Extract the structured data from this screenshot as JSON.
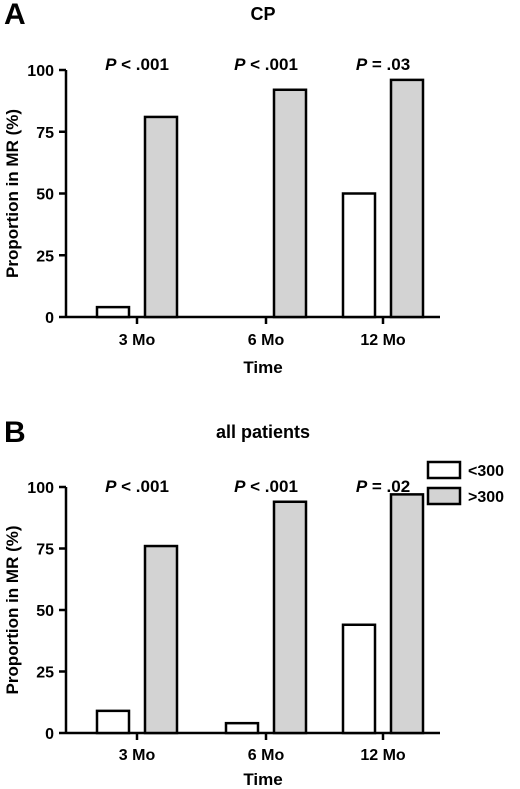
{
  "chart_data": [
    {
      "panel": "A",
      "type": "bar",
      "title": "CP",
      "xlabel": "Time",
      "ylabel": "Proportion in MR (%)",
      "ylim": [
        0,
        100
      ],
      "yticks": [
        0,
        25,
        50,
        75,
        100
      ],
      "categories": [
        "3 Mo",
        "6 Mo",
        "12 Mo"
      ],
      "series": [
        {
          "name": "<300",
          "color": "#ffffff",
          "values": [
            4,
            0,
            50
          ]
        },
        {
          "name": ">300",
          "color": "#d3d3d3",
          "values": [
            81,
            92,
            96
          ]
        }
      ],
      "annotations": [
        {
          "italic": "P",
          "rest": " < .001"
        },
        {
          "italic": "P",
          "rest": " < .001"
        },
        {
          "italic": "P",
          "rest": " = .03"
        }
      ]
    },
    {
      "panel": "B",
      "type": "bar",
      "title": "all patients",
      "xlabel": "Time",
      "ylabel": "Proportion in MR (%)",
      "ylim": [
        0,
        100
      ],
      "yticks": [
        0,
        25,
        50,
        75,
        100
      ],
      "categories": [
        "3 Mo",
        "6 Mo",
        "12 Mo"
      ],
      "series": [
        {
          "name": "<300",
          "color": "#ffffff",
          "values": [
            9,
            4,
            44
          ]
        },
        {
          "name": ">300",
          "color": "#d3d3d3",
          "values": [
            76,
            94,
            97
          ]
        }
      ],
      "annotations": [
        {
          "italic": "P",
          "rest": " < .001"
        },
        {
          "italic": "P",
          "rest": " < .001"
        },
        {
          "italic": "P",
          "rest": " = .02"
        }
      ],
      "legend": {
        "position": "top-right",
        "entries": [
          "<300",
          ">300"
        ]
      }
    }
  ]
}
